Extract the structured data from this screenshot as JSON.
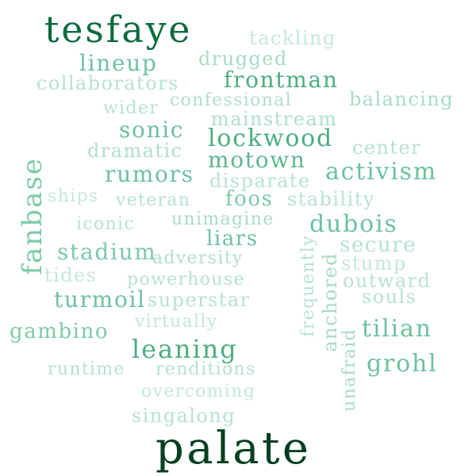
{
  "words": [
    {
      "text": "tesfaye",
      "color": "#0b6b3e"
    },
    {
      "text": "palate",
      "color": "#00401f"
    },
    {
      "text": "fanbase",
      "color": "#7ccba7"
    },
    {
      "text": "tackling",
      "color": "#c4e8d8"
    },
    {
      "text": "lineup",
      "color": "#6cc29d"
    },
    {
      "text": "drugged",
      "color": "#a8dcc4"
    },
    {
      "text": "collaborators",
      "color": "#b7e3cf"
    },
    {
      "text": "frontman",
      "color": "#4aae80"
    },
    {
      "text": "wider",
      "color": "#b7e3cf"
    },
    {
      "text": "confessional",
      "color": "#b0dfca"
    },
    {
      "text": "balancing",
      "color": "#a8dcc4"
    },
    {
      "text": "sonic",
      "color": "#6cc29d"
    },
    {
      "text": "mainstream",
      "color": "#b0dfca"
    },
    {
      "text": "dramatic",
      "color": "#b0dfca"
    },
    {
      "text": "lockwood",
      "color": "#4aae80"
    },
    {
      "text": "center",
      "color": "#b7e3cf"
    },
    {
      "text": "motown",
      "color": "#5bb88f"
    },
    {
      "text": "rumors",
      "color": "#6cc29d"
    },
    {
      "text": "disparate",
      "color": "#b7e3cf"
    },
    {
      "text": "activism",
      "color": "#6cc29d"
    },
    {
      "text": "ships",
      "color": "#c4e8d8"
    },
    {
      "text": "veteran",
      "color": "#b7e3cf"
    },
    {
      "text": "foos",
      "color": "#7ccba7"
    },
    {
      "text": "stability",
      "color": "#b7e3cf"
    },
    {
      "text": "iconic",
      "color": "#b7e3cf"
    },
    {
      "text": "unimagine",
      "color": "#a8dcc4"
    },
    {
      "text": "dubois",
      "color": "#6cc29d"
    },
    {
      "text": "liars",
      "color": "#6cc29d"
    },
    {
      "text": "secure",
      "color": "#b7e3cf"
    },
    {
      "text": "stadium",
      "color": "#7ccba7"
    },
    {
      "text": "adversity",
      "color": "#b0dfca"
    },
    {
      "text": "stump",
      "color": "#c4e8d8"
    },
    {
      "text": "tides",
      "color": "#c4e8d8"
    },
    {
      "text": "powerhouse",
      "color": "#b7e3cf"
    },
    {
      "text": "outward",
      "color": "#b7e3cf"
    },
    {
      "text": "frequently",
      "color": "#b7e3cf"
    },
    {
      "text": "anchored",
      "color": "#a8dcc4"
    },
    {
      "text": "turmoil",
      "color": "#6cc29d"
    },
    {
      "text": "superstar",
      "color": "#b7e3cf"
    },
    {
      "text": "souls",
      "color": "#b7e3cf"
    },
    {
      "text": "gambino",
      "color": "#7ccba7"
    },
    {
      "text": "virtually",
      "color": "#c4e8d8"
    },
    {
      "text": "tilian",
      "color": "#6cc29d"
    },
    {
      "text": "leaning",
      "color": "#4aae80"
    },
    {
      "text": "unafraid",
      "color": "#a8dcc4"
    },
    {
      "text": "grohl",
      "color": "#6cc29d"
    },
    {
      "text": "runtime",
      "color": "#b7e3cf"
    },
    {
      "text": "renditions",
      "color": "#b7e3cf"
    },
    {
      "text": "overcoming",
      "color": "#c4e8d8"
    },
    {
      "text": "singalong",
      "color": "#b7e3cf"
    }
  ]
}
